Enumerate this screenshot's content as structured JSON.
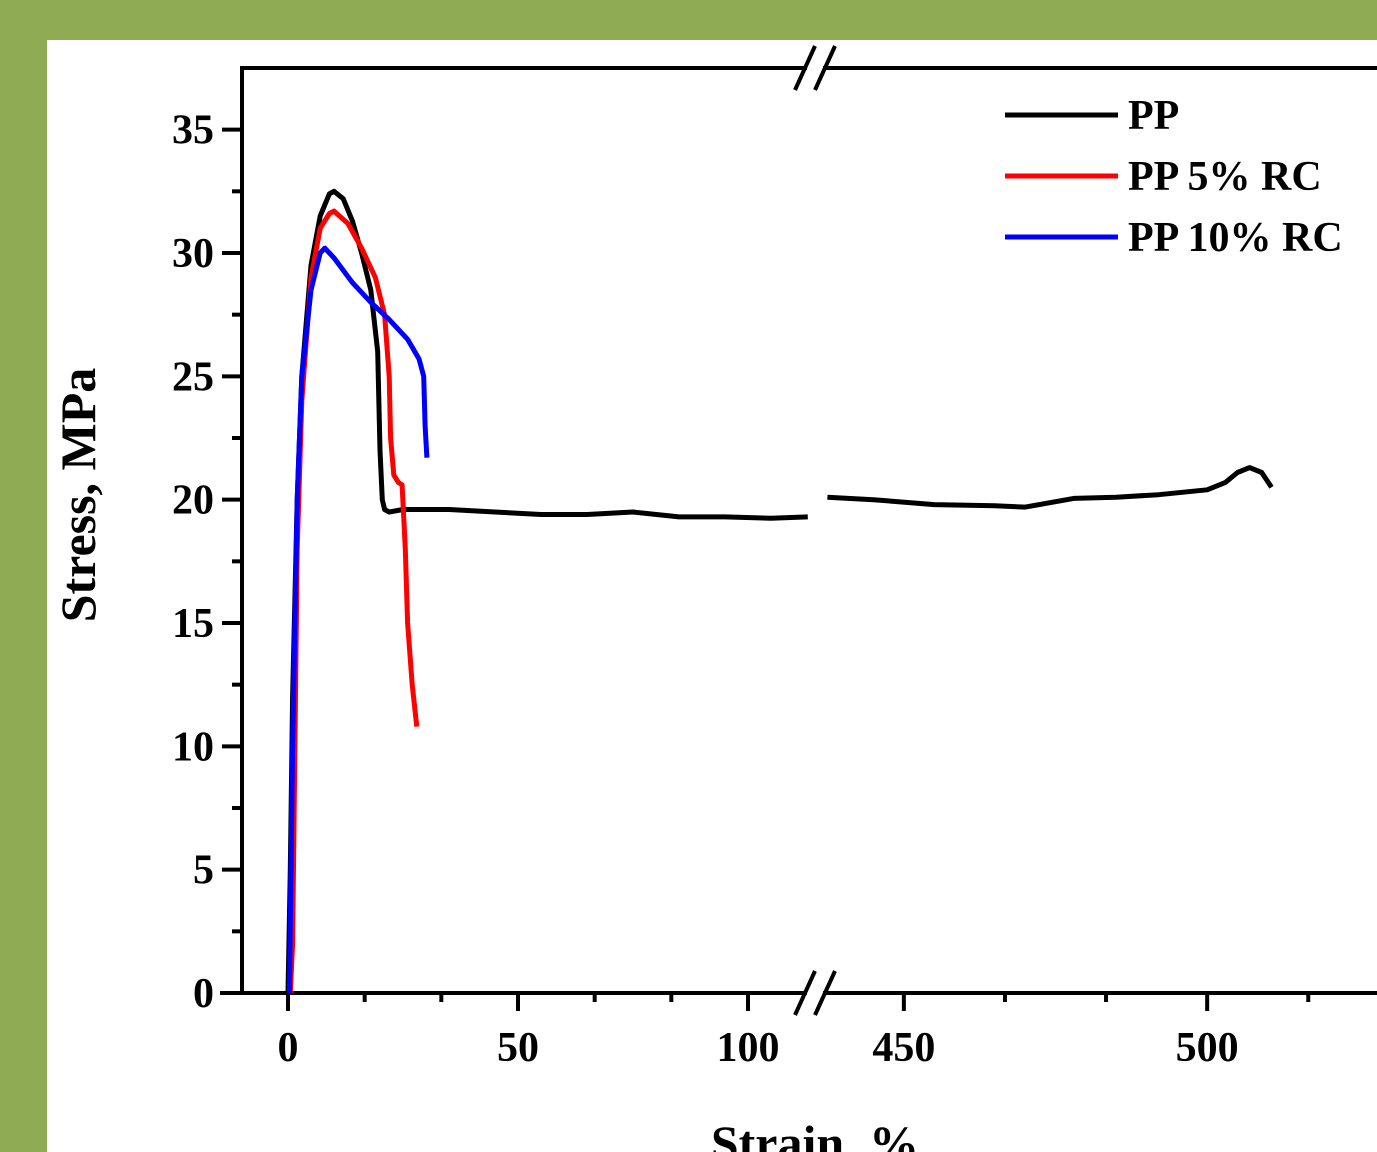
{
  "chart_data": {
    "type": "line",
    "xlabel": "Strain, %",
    "ylabel": "Stress, MPa",
    "ylim": [
      0,
      37.5
    ],
    "yticks": [
      0,
      5,
      10,
      15,
      20,
      25,
      30,
      35
    ],
    "yminor": [
      2.5,
      7.5,
      12.5,
      17.5,
      22.5,
      27.5,
      32.5
    ],
    "x_segments": [
      {
        "xlim": [
          -10,
          115
        ],
        "xticks": [
          0,
          50,
          100
        ],
        "xminor": [
          16.67,
          33.33,
          66.67,
          83.33
        ]
      },
      {
        "xlim": [
          437,
          528
        ],
        "xticks": [
          450,
          500
        ],
        "xminor": [
          466.67,
          483.33,
          516.67
        ]
      }
    ],
    "legend": "upper right",
    "series": [
      {
        "name": "PP",
        "color": "#000000",
        "x": [
          0,
          0.5,
          1,
          2,
          3,
          5,
          7,
          9,
          10,
          12,
          14,
          16,
          18,
          19.5,
          20,
          20.5,
          21,
          22,
          25,
          35,
          45,
          55,
          65,
          75,
          85,
          95,
          105,
          113,
          null,
          437.4,
          445,
          455,
          465,
          470,
          478,
          485,
          492,
          500,
          503,
          505,
          507,
          509,
          510.6
        ],
        "values": [
          0,
          5,
          12,
          20,
          25,
          29.5,
          31.5,
          32.4,
          32.5,
          32.2,
          31.3,
          30,
          28.5,
          26,
          22,
          20,
          19.6,
          19.5,
          19.6,
          19.6,
          19.5,
          19.4,
          19.4,
          19.5,
          19.3,
          19.3,
          19.25,
          19.3,
          null,
          20.1,
          20,
          19.8,
          19.75,
          19.7,
          20.05,
          20.1,
          20.2,
          20.4,
          20.7,
          21.1,
          21.3,
          21.1,
          20.5
        ]
      },
      {
        "name": "PP 5% RC",
        "color": "#ff0000",
        "x": [
          0.5,
          1,
          1.5,
          2,
          3,
          5,
          7,
          9,
          10,
          13,
          16,
          19,
          21,
          22,
          22.3,
          23,
          24,
          24.8,
          25.5,
          26,
          27,
          28
        ],
        "values": [
          0,
          2,
          10,
          18,
          24,
          29,
          31,
          31.6,
          31.7,
          31.2,
          30.2,
          29,
          27.5,
          25,
          22.5,
          21,
          20.7,
          20.6,
          18,
          15,
          12.5,
          10.8
        ]
      },
      {
        "name": "PP 10% RC",
        "color": "#0000ff",
        "x": [
          0.3,
          1,
          2,
          3,
          5,
          7,
          8,
          10,
          14,
          18,
          22,
          26,
          28.5,
          29.5,
          29.8,
          30.2
        ],
        "values": [
          0,
          10,
          20,
          25,
          28.5,
          30,
          30.2,
          29.8,
          28.8,
          28,
          27.3,
          26.5,
          25.7,
          25,
          23,
          21.7
        ]
      }
    ]
  }
}
